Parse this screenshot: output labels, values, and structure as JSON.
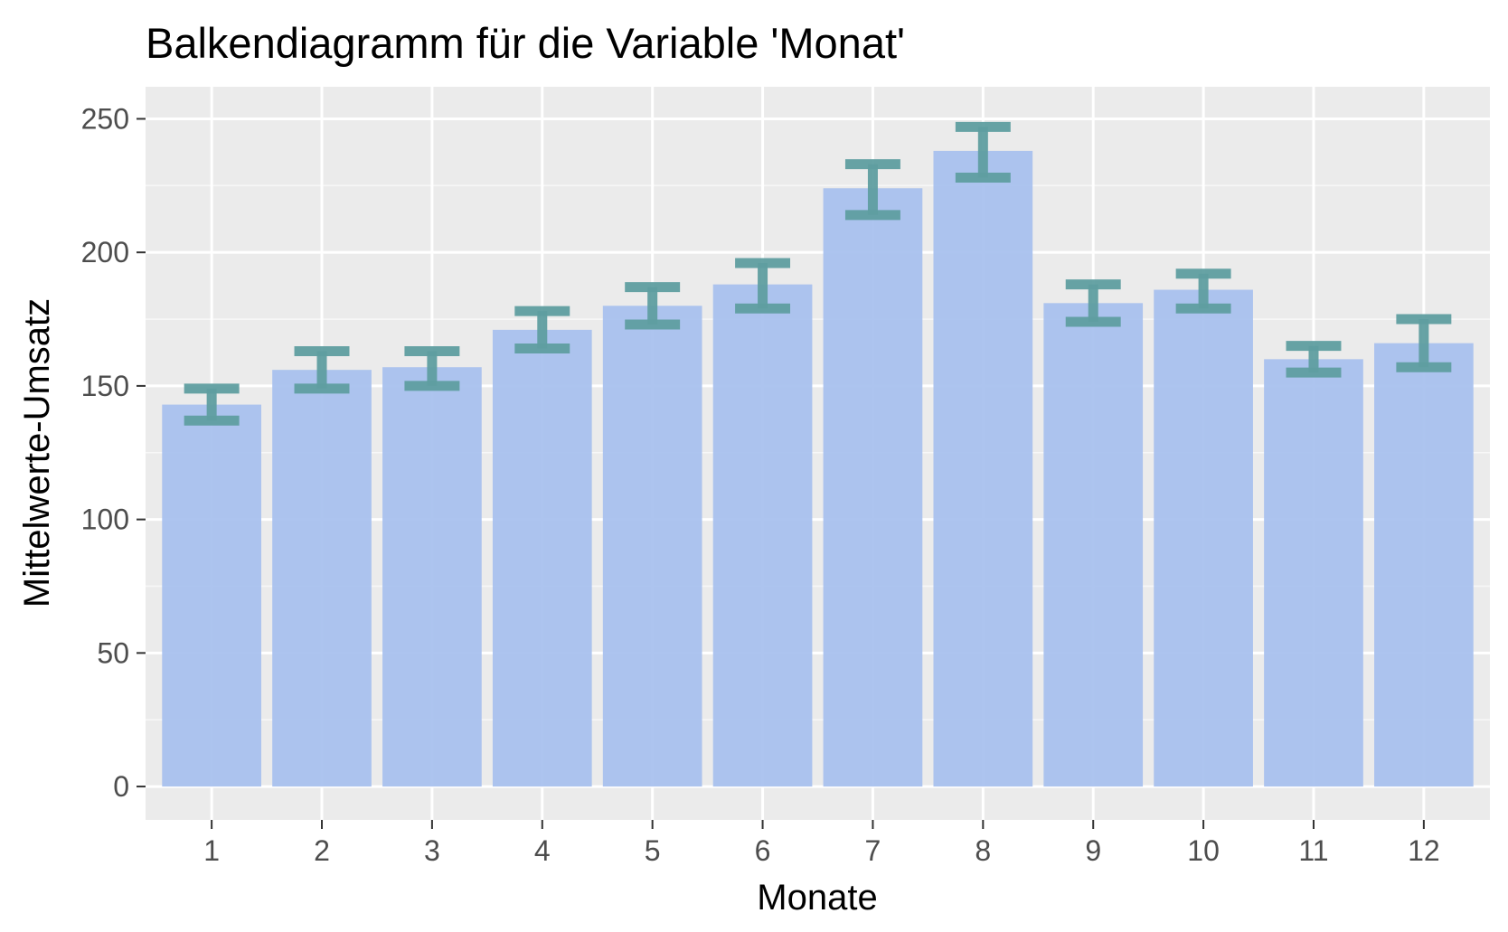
{
  "chart_data": {
    "type": "bar",
    "title": "Balkendiagramm für die Variable 'Monat'",
    "xlabel": "Monate",
    "ylabel": "Mittelwerte-Umsatz",
    "categories": [
      "1",
      "2",
      "3",
      "4",
      "5",
      "6",
      "7",
      "8",
      "9",
      "10",
      "11",
      "12"
    ],
    "values": [
      143,
      156,
      157,
      171,
      180,
      188,
      224,
      238,
      181,
      186,
      160,
      166
    ],
    "error_low": [
      137,
      149,
      150,
      164,
      173,
      179,
      214,
      228,
      174,
      179,
      155,
      157
    ],
    "error_high": [
      149,
      163,
      163,
      178,
      187,
      196,
      233,
      247,
      188,
      192,
      165,
      175
    ],
    "yticks": [
      0,
      50,
      100,
      150,
      200,
      250
    ],
    "ylim": [
      -12.5,
      262
    ],
    "grid": true,
    "colors": {
      "panel_background": "#ebebeb",
      "grid_major": "#ffffff",
      "grid_minor": "#f7f7f7",
      "bar_fill": "#a6bfee",
      "errorbar": "#5f9ea0",
      "tick_text": "#4d4d4d",
      "tick_mark": "#333333"
    }
  }
}
